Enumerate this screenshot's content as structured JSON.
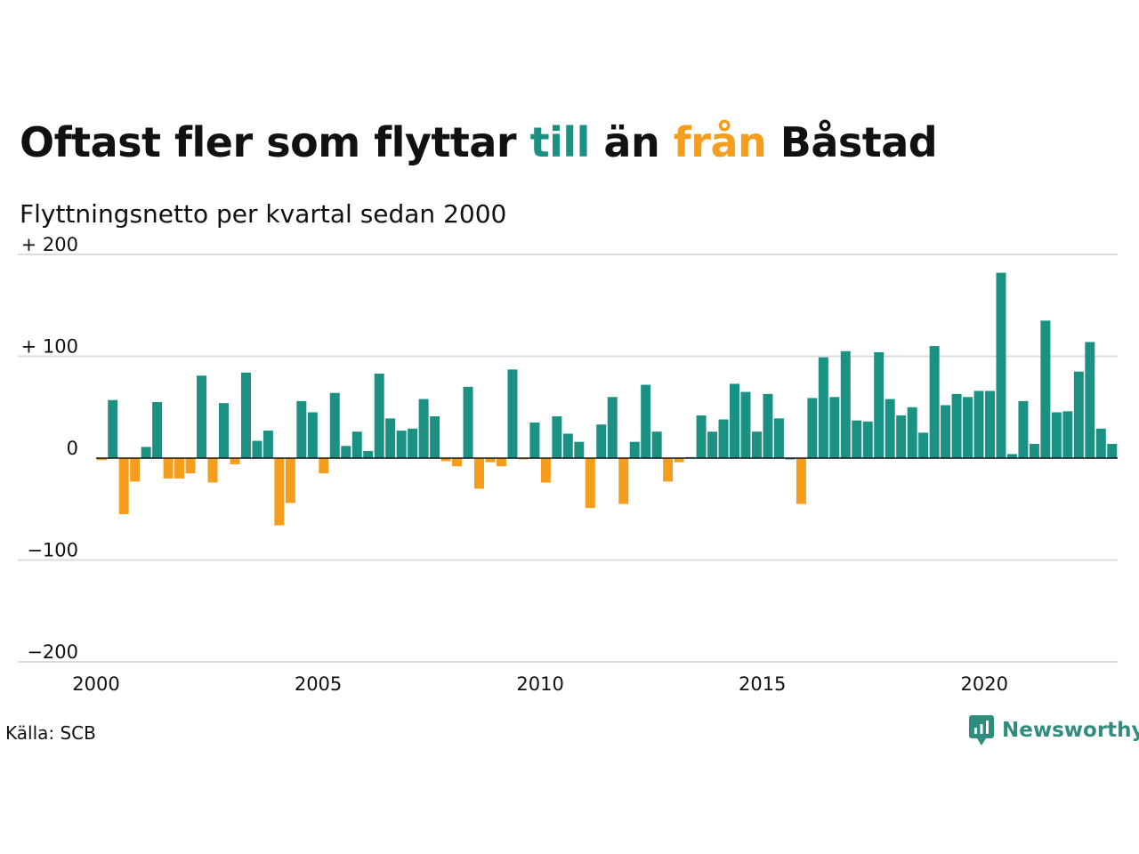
{
  "title": {
    "part1": "Oftast fler som flyttar ",
    "part2": "till",
    "part3": " än ",
    "part4": "från",
    "part5": " Båstad"
  },
  "subtitle": "Flyttningsnetto per kvartal sedan 2000",
  "source": "Källa: SCB",
  "logo_text": "Newsworthy",
  "colors": {
    "positive": "#1a9183",
    "negative": "#f59d1d",
    "grid": "#dcdcdc",
    "axis": "#111111"
  },
  "chart_data": {
    "type": "bar",
    "ylim": [
      -200,
      200
    ],
    "y_ticks": [
      200,
      100,
      0,
      -100,
      -200
    ],
    "y_tick_labels": [
      "+ 200",
      "+ 100",
      "0",
      "−100",
      "−200"
    ],
    "x_tick_labels": [
      "2000",
      "2005",
      "2010",
      "2015",
      "2020"
    ],
    "x_start": "2000 Q1",
    "values": [
      -2,
      57,
      -55,
      -23,
      11,
      55,
      -20,
      -20,
      -15,
      81,
      -24,
      54,
      -6,
      84,
      17,
      27,
      -66,
      -44,
      56,
      45,
      -15,
      64,
      12,
      26,
      7,
      83,
      39,
      27,
      29,
      58,
      41,
      -3,
      -8,
      70,
      -30,
      -4,
      -8,
      87,
      -1,
      35,
      -24,
      41,
      24,
      16,
      -49,
      33,
      60,
      -45,
      16,
      72,
      26,
      -23,
      -4,
      1,
      42,
      26,
      38,
      73,
      65,
      26,
      63,
      39,
      0,
      -45,
      59,
      99,
      60,
      105,
      37,
      36,
      104,
      58,
      42,
      50,
      25,
      110,
      52,
      63,
      60,
      66,
      66,
      182,
      4,
      56,
      14,
      135,
      45,
      46,
      85,
      114,
      29,
      14
    ]
  }
}
